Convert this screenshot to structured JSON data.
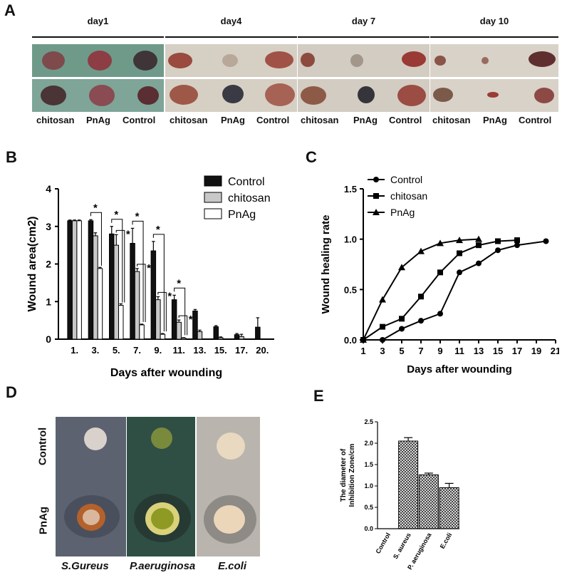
{
  "panels": {
    "a": "A",
    "b": "B",
    "c": "C",
    "d": "D",
    "e": "E"
  },
  "panel_a": {
    "days": [
      "day1",
      "day4",
      "day 7",
      "day 10"
    ],
    "groups": [
      "chitosan",
      "PnAg",
      "Control"
    ],
    "colors": {
      "bg1": "#6f9a8a",
      "bg2": "#cdc7ba",
      "wound": "#6a2b2f",
      "woundLight": "#a8655b"
    }
  },
  "panel_d": {
    "rows": [
      "Control",
      "PnAg"
    ],
    "bacteria": [
      "S.Gureus",
      "P.aeruginosa",
      "E.coli"
    ],
    "colors": {
      "dish1": "#5c6270",
      "dish2": "#2f4f44",
      "dish3": "#b9b4ad"
    }
  },
  "chart_data": [
    {
      "id": "B",
      "type": "bar",
      "title": "",
      "xlabel": "Days after wounding",
      "ylabel": "Wound  area(cm2)",
      "ylim": [
        0,
        4
      ],
      "yticks": [
        "0",
        "1",
        "2",
        "3",
        "4"
      ],
      "categories": [
        "1.",
        "3.",
        "5.",
        "7.",
        "9.",
        "11.",
        "13.",
        "15.",
        "17.",
        "20."
      ],
      "series": [
        {
          "name": "Control",
          "color": "#111111",
          "values": [
            3.15,
            3.15,
            2.8,
            2.55,
            2.35,
            1.05,
            0.75,
            0.33,
            0.12,
            0.32
          ],
          "err": [
            0.02,
            0.03,
            0.2,
            0.4,
            0.25,
            0.12,
            0.04,
            0.03,
            0.03,
            0.25
          ]
        },
        {
          "name": "chitosan",
          "color": "#c8c8c8",
          "values": [
            3.15,
            2.75,
            2.5,
            1.8,
            1.05,
            0.45,
            0.2,
            0.04,
            0.07,
            0.0
          ],
          "err": [
            0.02,
            0.08,
            0.28,
            0.08,
            0.08,
            0.06,
            0.04,
            0.02,
            0.06,
            0.0
          ]
        },
        {
          "name": "PnAg",
          "color": "#ffffff",
          "values": [
            3.15,
            1.88,
            0.9,
            0.38,
            0.13,
            0.03,
            0.0,
            0.0,
            0.0,
            0.0
          ],
          "err": [
            0.02,
            0.03,
            0.04,
            0.02,
            0.02,
            0.01,
            0.0,
            0.0,
            0.0,
            0.0
          ]
        }
      ],
      "significance": "*"
    },
    {
      "id": "C",
      "type": "line",
      "xlabel": "Days after wounding",
      "ylabel": "Wound healing rate",
      "xlim": [
        1,
        21
      ],
      "ylim": [
        0,
        1.5
      ],
      "xticks": [
        "1",
        "3",
        "5",
        "7",
        "9",
        "11",
        "13",
        "15",
        "17",
        "19",
        "21"
      ],
      "yticks": [
        "0.0",
        "0.5",
        "1.0",
        "1.5"
      ],
      "series": [
        {
          "name": "Control",
          "marker": "circle",
          "x": [
            1,
            3,
            5,
            7,
            9,
            11,
            13,
            15,
            17,
            20
          ],
          "y": [
            0,
            0,
            0.11,
            0.19,
            0.26,
            0.67,
            0.76,
            0.89,
            0.94,
            0.98
          ]
        },
        {
          "name": "chitosan",
          "marker": "square",
          "x": [
            1,
            3,
            5,
            7,
            9,
            11,
            13,
            15,
            17
          ],
          "y": [
            0,
            0.13,
            0.21,
            0.43,
            0.67,
            0.86,
            0.94,
            0.98,
            0.99
          ]
        },
        {
          "name": "PnAg",
          "marker": "triangle",
          "x": [
            1,
            3,
            5,
            7,
            9,
            11,
            13
          ],
          "y": [
            0,
            0.4,
            0.72,
            0.88,
            0.96,
            0.99,
            1.0
          ]
        }
      ]
    },
    {
      "id": "E",
      "type": "bar",
      "ylabel_line1": "The diameter of",
      "ylabel_line2": "Inhibition Zone/cm",
      "ylim": [
        0,
        2.5
      ],
      "yticks": [
        "0.0",
        "0.5",
        "1.0",
        "1.5",
        "2.0",
        "2.5"
      ],
      "categories": [
        "Control",
        "S. aureus",
        "P. aeruginosa",
        "E.coli"
      ],
      "values": [
        0,
        2.05,
        1.26,
        0.96
      ],
      "err": [
        0,
        0.08,
        0.04,
        0.1
      ]
    }
  ]
}
